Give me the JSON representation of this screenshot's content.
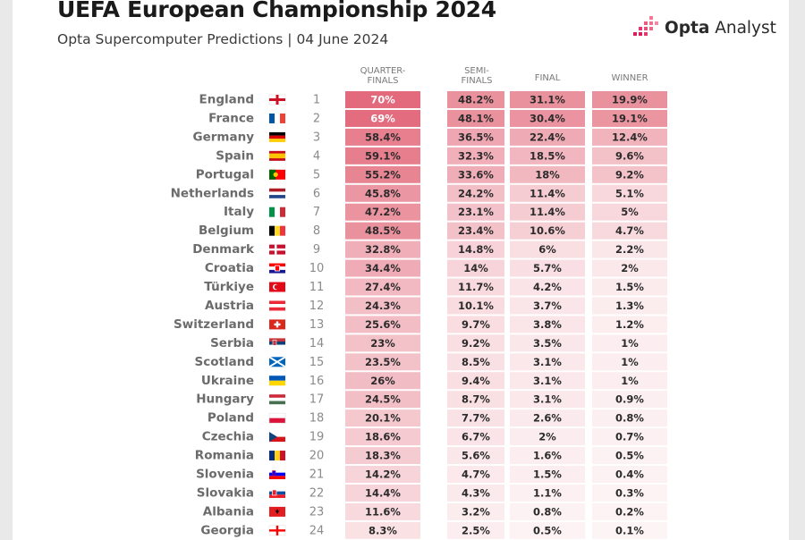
{
  "header": {
    "title": "UEFA European Championship 2024",
    "subtitle": "Opta Supercomputer Predictions | 04 June 2024",
    "brand_strong": "Opta",
    "brand_light": "Analyst",
    "brand_icon": "opta-logo-icon"
  },
  "colors": {
    "heat_low": "#fdf5f6",
    "heat_high": "#e36a7c",
    "team_text": "#6b6b6b",
    "rank_text": "#8a8a8a",
    "value_text": "#2b2b2b",
    "value_text_light": "#ffffff",
    "header_text": "#7a7a7a"
  },
  "chart_data": {
    "type": "table",
    "title": "UEFA European Championship 2024",
    "subtitle": "Opta Supercomputer Predictions | 04 June 2024",
    "columns": [
      {
        "key": "qf",
        "label_lines": [
          "QUARTER-",
          "FINALS"
        ]
      },
      {
        "key": "sf",
        "label_lines": [
          "SEMI-",
          "FINALS"
        ]
      },
      {
        "key": "final",
        "label_lines": [
          "FINAL"
        ]
      },
      {
        "key": "winner",
        "label_lines": [
          "WINNER"
        ]
      }
    ],
    "rows": [
      {
        "team": "England",
        "flag": "england-flag",
        "rank": "1",
        "qf": "70%",
        "sf": "48.2%",
        "final": "31.1%",
        "winner": "19.9%"
      },
      {
        "team": "France",
        "flag": "france-flag",
        "rank": "2",
        "qf": "69%",
        "sf": "48.1%",
        "final": "30.4%",
        "winner": "19.1%"
      },
      {
        "team": "Germany",
        "flag": "germany-flag",
        "rank": "3",
        "qf": "58.4%",
        "sf": "36.5%",
        "final": "22.4%",
        "winner": "12.4%"
      },
      {
        "team": "Spain",
        "flag": "spain-flag",
        "rank": "4",
        "qf": "59.1%",
        "sf": "32.3%",
        "final": "18.5%",
        "winner": "9.6%"
      },
      {
        "team": "Portugal",
        "flag": "portugal-flag",
        "rank": "5",
        "qf": "55.2%",
        "sf": "33.6%",
        "final": "18%",
        "winner": "9.2%"
      },
      {
        "team": "Netherlands",
        "flag": "netherlands-flag",
        "rank": "6",
        "qf": "45.8%",
        "sf": "24.2%",
        "final": "11.4%",
        "winner": "5.1%"
      },
      {
        "team": "Italy",
        "flag": "italy-flag",
        "rank": "7",
        "qf": "47.2%",
        "sf": "23.1%",
        "final": "11.4%",
        "winner": "5%"
      },
      {
        "team": "Belgium",
        "flag": "belgium-flag",
        "rank": "8",
        "qf": "48.5%",
        "sf": "23.4%",
        "final": "10.6%",
        "winner": "4.7%"
      },
      {
        "team": "Denmark",
        "flag": "denmark-flag",
        "rank": "9",
        "qf": "32.8%",
        "sf": "14.8%",
        "final": "6%",
        "winner": "2.2%"
      },
      {
        "team": "Croatia",
        "flag": "croatia-flag",
        "rank": "10",
        "qf": "34.4%",
        "sf": "14%",
        "final": "5.7%",
        "winner": "2%"
      },
      {
        "team": "Türkiye",
        "flag": "turkiye-flag",
        "rank": "11",
        "qf": "27.4%",
        "sf": "11.7%",
        "final": "4.2%",
        "winner": "1.5%"
      },
      {
        "team": "Austria",
        "flag": "austria-flag",
        "rank": "12",
        "qf": "24.3%",
        "sf": "10.1%",
        "final": "3.7%",
        "winner": "1.3%"
      },
      {
        "team": "Switzerland",
        "flag": "switzerland-flag",
        "rank": "13",
        "qf": "25.6%",
        "sf": "9.7%",
        "final": "3.8%",
        "winner": "1.2%"
      },
      {
        "team": "Serbia",
        "flag": "serbia-flag",
        "rank": "14",
        "qf": "23%",
        "sf": "9.2%",
        "final": "3.5%",
        "winner": "1%"
      },
      {
        "team": "Scotland",
        "flag": "scotland-flag",
        "rank": "15",
        "qf": "23.5%",
        "sf": "8.5%",
        "final": "3.1%",
        "winner": "1%"
      },
      {
        "team": "Ukraine",
        "flag": "ukraine-flag",
        "rank": "16",
        "qf": "26%",
        "sf": "9.4%",
        "final": "3.1%",
        "winner": "1%"
      },
      {
        "team": "Hungary",
        "flag": "hungary-flag",
        "rank": "17",
        "qf": "24.5%",
        "sf": "8.7%",
        "final": "3.1%",
        "winner": "0.9%"
      },
      {
        "team": "Poland",
        "flag": "poland-flag",
        "rank": "18",
        "qf": "20.1%",
        "sf": "7.7%",
        "final": "2.6%",
        "winner": "0.8%"
      },
      {
        "team": "Czechia",
        "flag": "czechia-flag",
        "rank": "19",
        "qf": "18.6%",
        "sf": "6.7%",
        "final": "2%",
        "winner": "0.7%"
      },
      {
        "team": "Romania",
        "flag": "romania-flag",
        "rank": "20",
        "qf": "18.3%",
        "sf": "5.6%",
        "final": "1.6%",
        "winner": "0.5%"
      },
      {
        "team": "Slovenia",
        "flag": "slovenia-flag",
        "rank": "21",
        "qf": "14.2%",
        "sf": "4.7%",
        "final": "1.5%",
        "winner": "0.4%"
      },
      {
        "team": "Slovakia",
        "flag": "slovakia-flag",
        "rank": "22",
        "qf": "14.4%",
        "sf": "4.3%",
        "final": "1.1%",
        "winner": "0.3%"
      },
      {
        "team": "Albania",
        "flag": "albania-flag",
        "rank": "23",
        "qf": "11.6%",
        "sf": "3.2%",
        "final": "0.8%",
        "winner": "0.2%"
      },
      {
        "team": "Georgia",
        "flag": "georgia-flag",
        "rank": "24",
        "qf": "8.3%",
        "sf": "2.5%",
        "final": "0.5%",
        "winner": "0.1%"
      }
    ],
    "color_scale": "white-to-red heat per cell by probability"
  }
}
